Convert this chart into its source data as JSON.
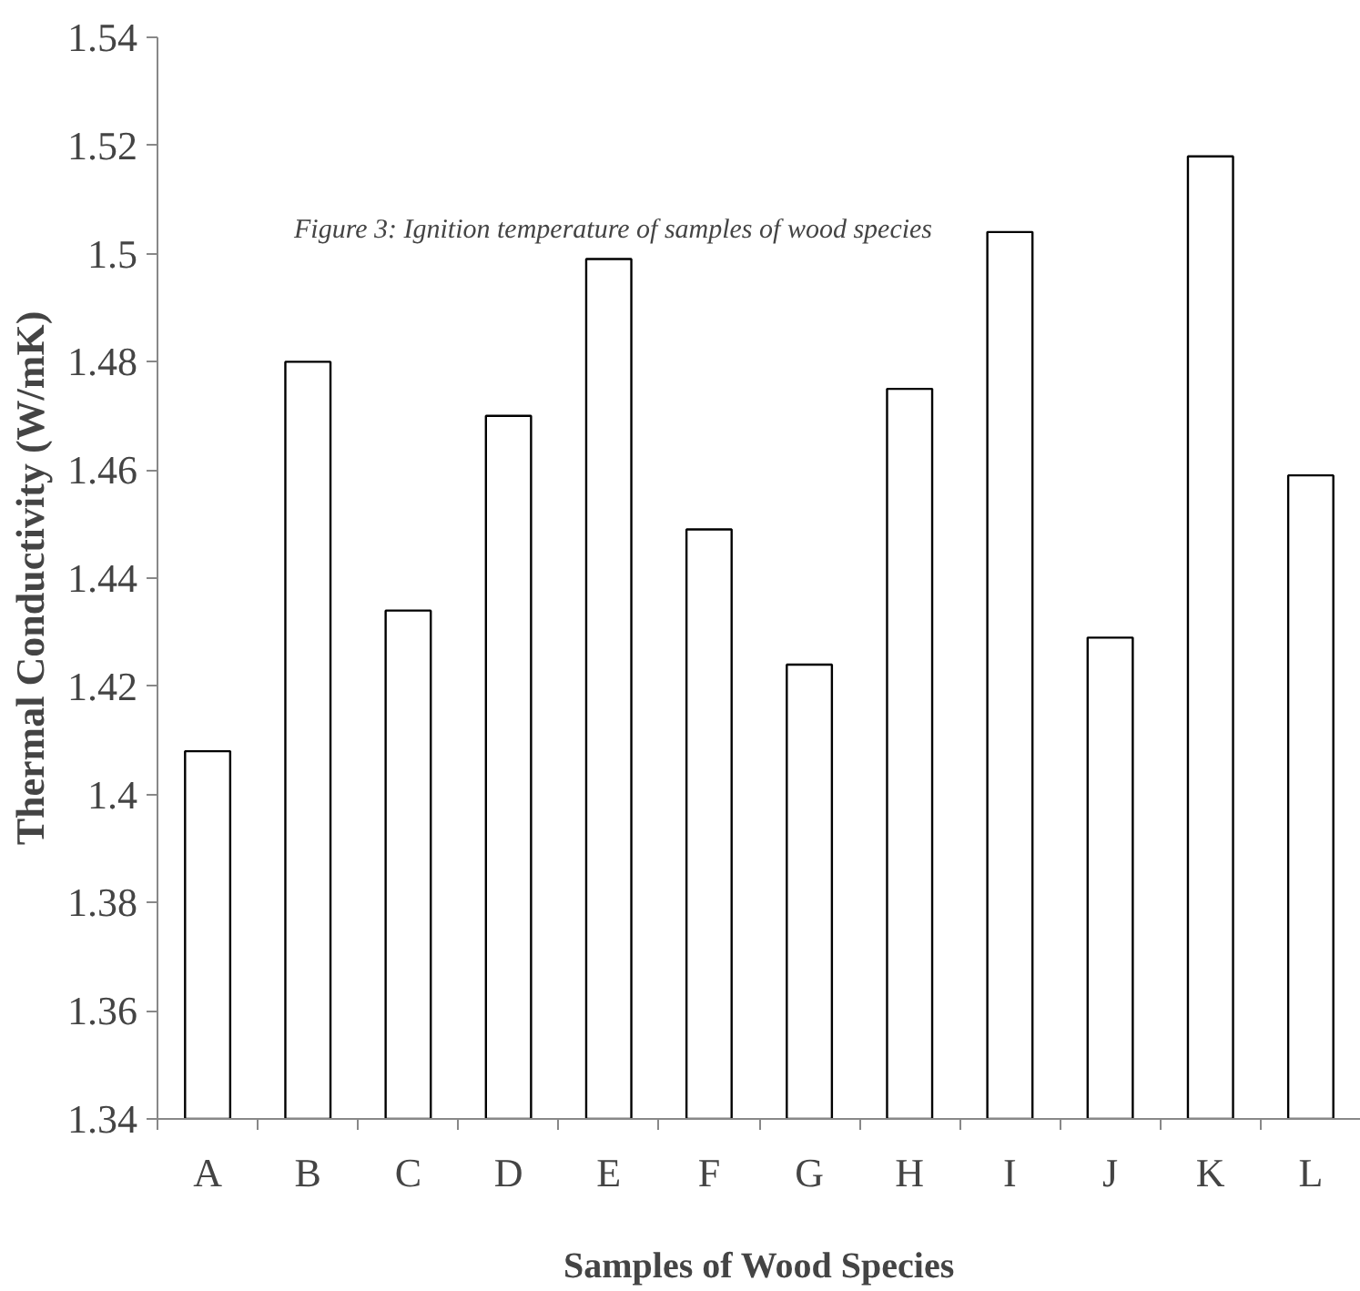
{
  "chart_data": {
    "type": "bar",
    "categories": [
      "A",
      "B",
      "C",
      "D",
      "E",
      "F",
      "G",
      "H",
      "I",
      "J",
      "K",
      "L"
    ],
    "values": [
      1.408,
      1.48,
      1.434,
      1.47,
      1.499,
      1.449,
      1.424,
      1.475,
      1.504,
      1.429,
      1.518,
      1.459
    ],
    "color": "#ffffff",
    "xlabel": "Samples of Wood Species",
    "ylabel": "Thermal Conductivity (W/mK)",
    "ylim": [
      1.34,
      1.54
    ],
    "yticks": [
      1.34,
      1.36,
      1.38,
      1.4,
      1.42,
      1.44,
      1.46,
      1.48,
      1.5,
      1.52,
      1.54
    ],
    "annotations": [
      "Figure 3: Ignition temperature of samples of wood species"
    ],
    "grid": false
  }
}
